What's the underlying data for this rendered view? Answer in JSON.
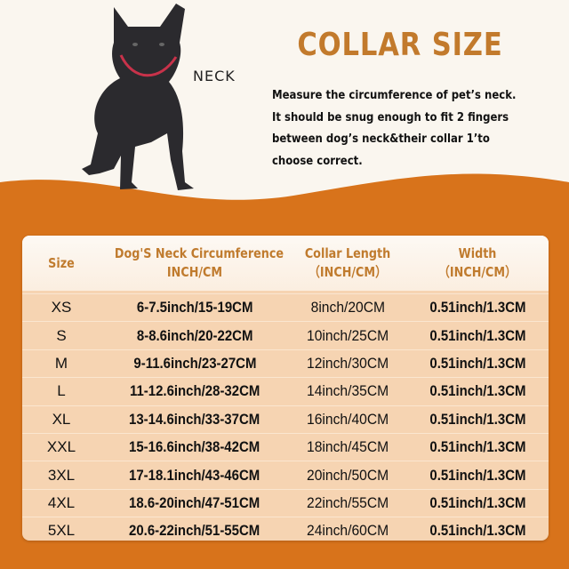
{
  "colors": {
    "accent": "#c27a2c",
    "band": "#d8731b",
    "cream": "#faf6ef",
    "row": "#f6d4b2"
  },
  "dog_label": "NECK",
  "title": "COLLAR SIZE",
  "description": [
    "Measure the circumference of pet’s neck.",
    "It should be snug enough to fit 2 fingers",
    "between dog’s neck&their collar 1’to",
    "choose correct."
  ],
  "table": {
    "headers": [
      [
        "Size"
      ],
      [
        "Dog'S Neck Circumference",
        "INCH/CM"
      ],
      [
        "Collar Length",
        "（INCH/CM）"
      ],
      [
        "Width",
        "（INCH/CM）"
      ]
    ],
    "rows": [
      [
        "XS",
        "6-7.5inch/15-19CM",
        "8inch/20CM",
        "0.51inch/1.3CM"
      ],
      [
        "S",
        "8-8.6inch/20-22CM",
        "10inch/25CM",
        "0.51inch/1.3CM"
      ],
      [
        "M",
        "9-11.6inch/23-27CM",
        "12inch/30CM",
        "0.51inch/1.3CM"
      ],
      [
        "L",
        "11-12.6inch/28-32CM",
        "14inch/35CM",
        "0.51inch/1.3CM"
      ],
      [
        "XL",
        "13-14.6inch/33-37CM",
        "16inch/40CM",
        "0.51inch/1.3CM"
      ],
      [
        "XXL",
        "15-16.6inch/38-42CM",
        "18inch/45CM",
        "0.51inch/1.3CM"
      ],
      [
        "3XL",
        "17-18.1inch/43-46CM",
        "20inch/50CM",
        "0.51inch/1.3CM"
      ],
      [
        "4XL",
        "18.6-20inch/47-51CM",
        "22inch/55CM",
        "0.51inch/1.3CM"
      ],
      [
        "5XL",
        "20.6-22inch/51-55CM",
        "24inch/60CM",
        "0.51inch/1.3CM"
      ]
    ]
  }
}
